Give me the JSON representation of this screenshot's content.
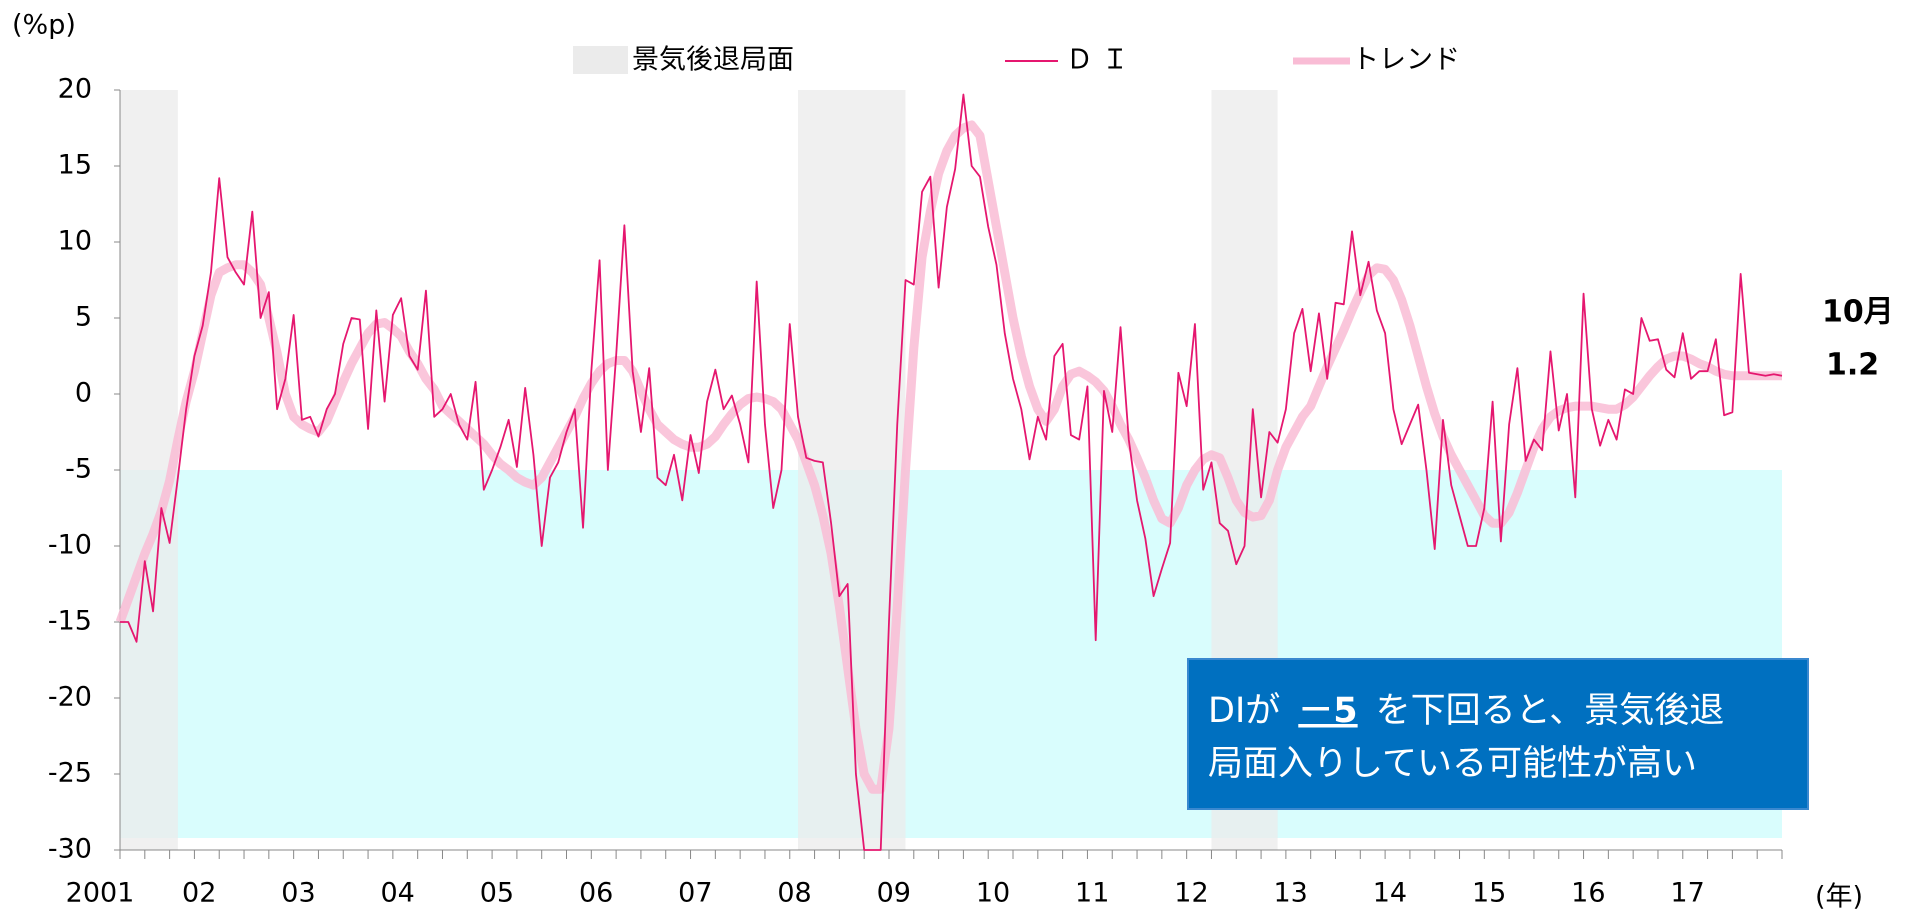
{
  "chart_data": {
    "type": "line",
    "y_unit": "(%p)",
    "x_unit": "(年)",
    "categories": [
      "2001",
      null,
      null,
      null,
      null,
      null,
      null,
      null,
      null,
      null,
      null,
      null,
      "02",
      null,
      null,
      null,
      null,
      null,
      null,
      null,
      null,
      null,
      null,
      null,
      "03",
      null,
      null,
      null,
      null,
      null,
      null,
      null,
      null,
      null,
      null,
      null,
      "04",
      null,
      null,
      null,
      null,
      null,
      null,
      null,
      null,
      null,
      null,
      null,
      "05",
      null,
      null,
      null,
      null,
      null,
      null,
      null,
      null,
      null,
      null,
      null,
      "06",
      null,
      null,
      null,
      null,
      null,
      null,
      null,
      null,
      null,
      null,
      null,
      "07",
      null,
      null,
      null,
      null,
      null,
      null,
      null,
      null,
      null,
      null,
      null,
      "08",
      null,
      null,
      null,
      null,
      null,
      null,
      null,
      null,
      null,
      null,
      null,
      "09",
      null,
      null,
      null,
      null,
      null,
      null,
      null,
      null,
      null,
      null,
      null,
      "10",
      null,
      null,
      null,
      null,
      null,
      null,
      null,
      null,
      null,
      null,
      null,
      "11",
      null,
      null,
      null,
      null,
      null,
      null,
      null,
      null,
      null,
      null,
      null,
      "12",
      null,
      null,
      null,
      null,
      null,
      null,
      null,
      null,
      null,
      null,
      null,
      "13",
      null,
      null,
      null,
      null,
      null,
      null,
      null,
      null,
      null,
      null,
      null,
      "14",
      null,
      null,
      null,
      null,
      null,
      null,
      null,
      null,
      null,
      null,
      null,
      "15",
      null,
      null,
      null,
      null,
      null,
      null,
      null,
      null,
      null,
      null,
      null,
      "16",
      null,
      null,
      null,
      null,
      null,
      null,
      null,
      null,
      null,
      null,
      null,
      "17",
      null,
      null,
      null,
      null,
      null,
      null,
      null,
      null,
      null
    ],
    "series": [
      {
        "name": "Ｄ Ｉ",
        "color": "#e5176f",
        "values": [
          -15,
          -15,
          -16.3,
          -11,
          -14.3,
          -7.5,
          -9.8,
          -5.5,
          -1,
          2.5,
          4.5,
          8,
          14.2,
          9,
          8,
          7.2,
          12,
          5,
          6.7,
          -1,
          1,
          5.2,
          -1.7,
          -1.5,
          -2.8,
          -1,
          0,
          3.3,
          5,
          4.9,
          -2.3,
          5.5,
          -0.5,
          5.2,
          6.3,
          2.5,
          1.6,
          6.8,
          -1.5,
          -1,
          0,
          -2,
          -3,
          0.8,
          -6.3,
          -5,
          -3.5,
          -1.7,
          -4.8,
          0.4,
          -4,
          -10,
          -5.5,
          -4.5,
          -2.5,
          -1,
          -8.8,
          1.5,
          8.8,
          -5,
          2.5,
          11.1,
          1.5,
          -2.5,
          1.7,
          -5.5,
          -6,
          -4,
          -7,
          -2.7,
          -5.2,
          -0.5,
          1.6,
          -1,
          -0.1,
          -2,
          -4.5,
          7.4,
          -2,
          -7.5,
          -5,
          4.6,
          -1.5,
          -4.2,
          -4.4,
          -4.5,
          -8.5,
          -13.3,
          -12.5,
          -25,
          -30,
          -30,
          -30,
          -15,
          -2,
          7.5,
          7.2,
          13.3,
          14.3,
          7,
          12.3,
          14.8,
          19.7,
          15,
          14.3,
          11,
          8.5,
          4,
          1,
          -1,
          -4.3,
          -1.5,
          -3,
          2.5,
          3.3,
          -2.7,
          -3,
          0.5,
          -16.2,
          0.2,
          -2.5,
          4.4,
          -3,
          -7,
          -9.5,
          -13.3,
          -11.5,
          -9.8,
          1.4,
          -0.8,
          4.6,
          -6.3,
          -4.5,
          -8.5,
          -9,
          -11.2,
          -10,
          -1,
          -6.8,
          -2.5,
          -3.2,
          -1,
          4,
          5.6,
          1.5,
          5.3,
          1,
          6,
          5.9,
          10.7,
          6.5,
          8.7,
          5.5,
          4,
          -1,
          -3.3,
          -2,
          -0.7,
          -5,
          -10.2,
          -1.7,
          -6,
          -8,
          -10,
          -10,
          -7.5,
          -0.5,
          -9.7,
          -2,
          1.7,
          -4.4,
          -3,
          -3.7,
          2.8,
          -2.4,
          0,
          -6.8,
          6.6,
          -1,
          -3.4,
          -1.7,
          -3,
          0.3,
          0,
          5,
          3.5,
          3.6,
          1.6,
          1.1,
          4,
          1,
          1.5,
          1.5,
          3.6,
          -1.4,
          -1.2,
          7.9,
          1.4,
          1.3,
          1.2,
          1.3,
          1.2
        ]
      },
      {
        "name": "トレンド",
        "color": "#f9bcd5",
        "values": [
          -15,
          -13.5,
          -12,
          -10.5,
          -9.2,
          -7.7,
          -5.7,
          -3,
          -0.5,
          1.5,
          4,
          6.5,
          8,
          8.3,
          8.5,
          8.5,
          8,
          7.2,
          5,
          2.7,
          0,
          -1.5,
          -2,
          -2.3,
          -2.5,
          -1.8,
          -0.5,
          0.8,
          2,
          3,
          4,
          4.6,
          4.7,
          4.3,
          3.8,
          2.8,
          2,
          1,
          0.3,
          -0.8,
          -1.3,
          -1.8,
          -2.3,
          -2.8,
          -3.3,
          -4,
          -4.6,
          -5,
          -5.5,
          -5.8,
          -6,
          -5.5,
          -4.5,
          -3.5,
          -2.5,
          -1.5,
          -0.3,
          0.7,
          1.5,
          2,
          2.2,
          2.2,
          1.5,
          0.2,
          -1,
          -2,
          -2.5,
          -3,
          -3.3,
          -3.5,
          -3.5,
          -3.3,
          -2.8,
          -2,
          -1.3,
          -0.7,
          -0.3,
          -0.2,
          -0.3,
          -0.5,
          -1,
          -2,
          -3,
          -4.5,
          -6,
          -8,
          -10.5,
          -14,
          -18,
          -22,
          -25,
          -26,
          -26,
          -22,
          -14,
          -5,
          3,
          9,
          12,
          14.5,
          16,
          17,
          17.5,
          17.7,
          17,
          14,
          11,
          8,
          5,
          2.5,
          0.5,
          -1,
          -1.8,
          -1,
          0.5,
          1.3,
          1.5,
          1.2,
          0.8,
          0.2,
          -0.8,
          -2,
          -3,
          -4.2,
          -5.5,
          -7,
          -8.2,
          -8.5,
          -7.5,
          -6,
          -5,
          -4.3,
          -4,
          -4.2,
          -5.5,
          -7,
          -7.8,
          -8.1,
          -8,
          -7,
          -5,
          -3.5,
          -2.5,
          -1.5,
          -0.8,
          0.5,
          1.8,
          3,
          4.2,
          5.5,
          6.7,
          7.8,
          8.3,
          8.2,
          7.5,
          6.2,
          4.5,
          2.5,
          0.5,
          -1.3,
          -2.8,
          -4,
          -5,
          -6,
          -7,
          -8,
          -8.5,
          -8.5,
          -7.8,
          -6.5,
          -5,
          -3.5,
          -2.3,
          -1.5,
          -1.1,
          -0.9,
          -0.8,
          -0.8,
          -0.8,
          -0.9,
          -1,
          -1,
          -0.7,
          -0.2,
          0.5,
          1.2,
          1.8,
          2.3,
          2.5,
          2.5,
          2.3,
          2,
          1.8,
          1.5,
          1.3,
          1.2,
          1.2,
          1.2,
          1.2,
          1.2,
          1.2,
          1.2
        ]
      }
    ],
    "recession_name": "景気後退局面",
    "recession_color": "#ebebeb",
    "recessions": [
      {
        "start": 0,
        "end": 7
      },
      {
        "start": 82,
        "end": 95
      },
      {
        "start": 132,
        "end": 140
      }
    ],
    "threshold": -5,
    "threshold_color": "#d9fdfd",
    "ylim": [
      -30,
      20
    ],
    "yticks": [
      -30,
      -25,
      -20,
      -15,
      -10,
      -5,
      0,
      5,
      10,
      15,
      20
    ],
    "end_label": "10月",
    "annotation": {
      "lead": "DIが",
      "emphasis": "－5",
      "rest": "を下回ると、景気後退",
      "line2": "局面入りしている可能性が高い",
      "color": "#0070c0"
    }
  }
}
